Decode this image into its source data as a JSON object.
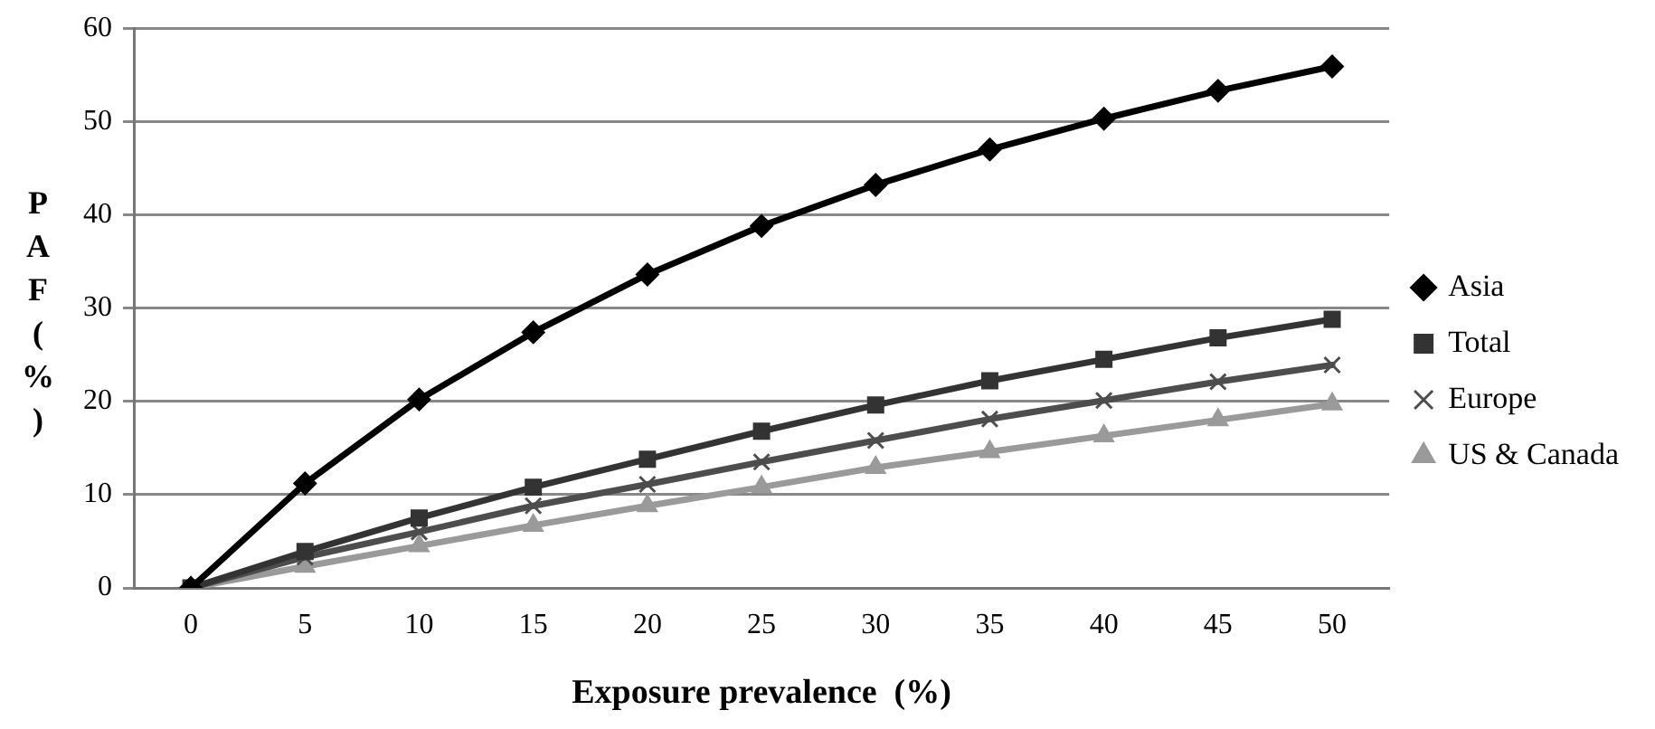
{
  "chart_data": {
    "type": "line",
    "xlabel": "Exposure prevalence  (%)",
    "ylabel": "PAF (%)",
    "categories": [
      "0",
      "5",
      "10",
      "15",
      "20",
      "25",
      "30",
      "35",
      "40",
      "45",
      "50"
    ],
    "series": [
      {
        "name": "Asia",
        "color": "#000000",
        "marker": "diamond",
        "values": [
          0,
          11.2,
          20.2,
          27.4,
          33.6,
          38.8,
          43.2,
          47.0,
          50.3,
          53.3,
          55.9
        ]
      },
      {
        "name": "Total",
        "color": "#333333",
        "marker": "square",
        "values": [
          0,
          3.9,
          7.5,
          10.8,
          13.8,
          16.8,
          19.6,
          22.2,
          24.5,
          26.8,
          28.8
        ]
      },
      {
        "name": "Europe",
        "color": "#4d4d4d",
        "marker": "cross",
        "values": [
          0,
          3.3,
          6.0,
          8.8,
          11.1,
          13.5,
          15.8,
          18.1,
          20.1,
          22.1,
          23.9
        ]
      },
      {
        "name": "US & Canada",
        "color": "#9a9a9a",
        "marker": "triangle",
        "values": [
          0,
          2.3,
          4.5,
          6.7,
          8.8,
          10.8,
          12.9,
          14.6,
          16.3,
          18.0,
          19.7
        ]
      }
    ],
    "ylim": [
      0,
      60
    ],
    "yticks": [
      0,
      10,
      20,
      30,
      40,
      50,
      60
    ],
    "grid": "y",
    "legend": "right",
    "line_style": "solid"
  }
}
